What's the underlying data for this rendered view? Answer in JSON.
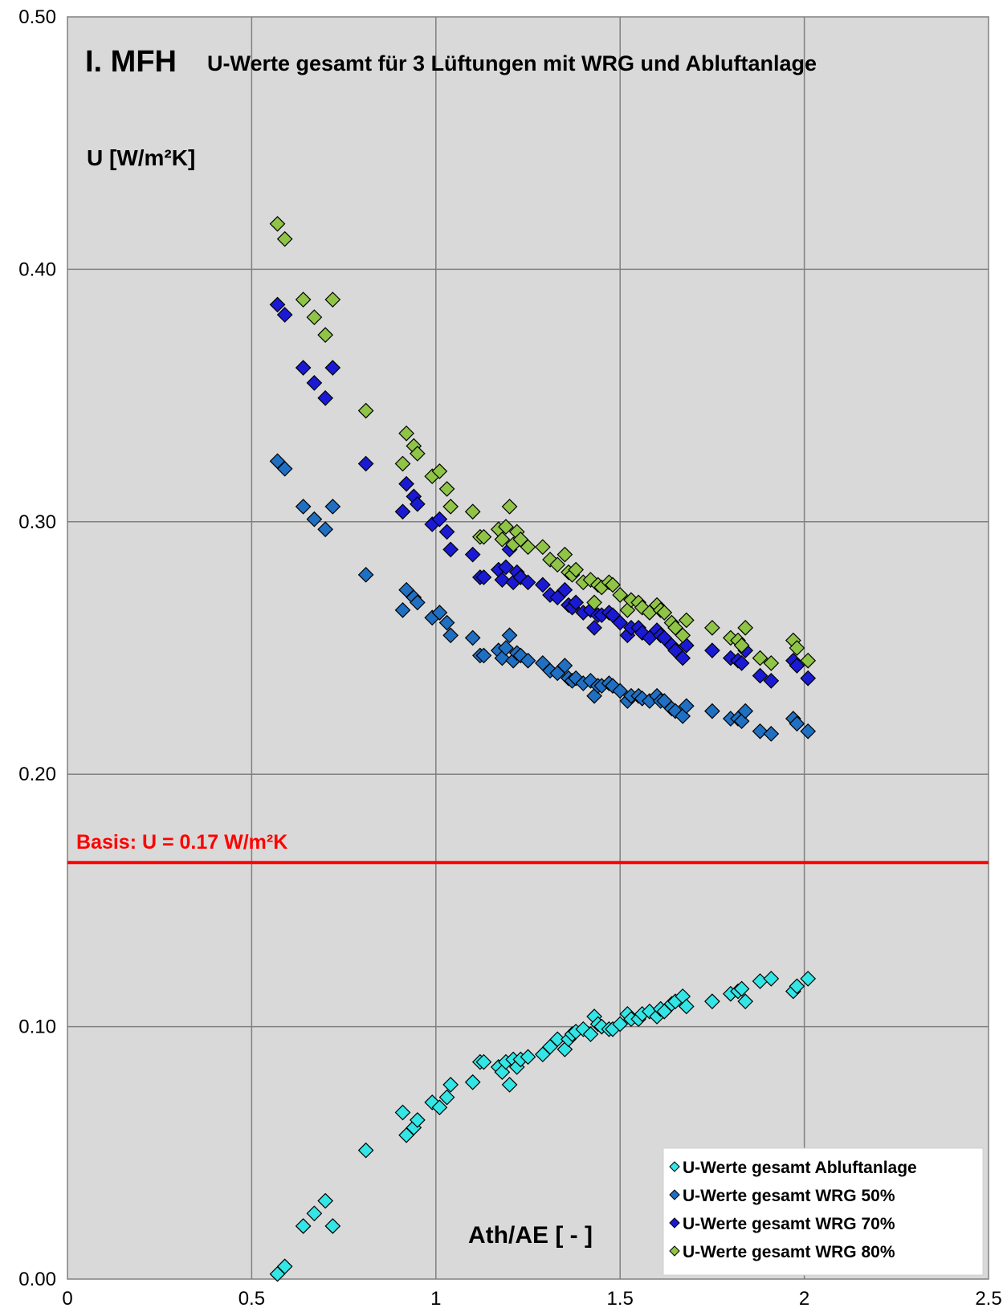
{
  "chart_data": {
    "type": "scatter",
    "title": "I. MFH",
    "subtitle": "U-Werte gesamt für 3 Lüftungen mit WRG und Abluftanlage",
    "ylabel": "U [W/m²K]",
    "xlabel": "Ath/AE [ - ]",
    "xlim": [
      0,
      2.5
    ],
    "ylim": [
      0,
      0.5
    ],
    "xticks": [
      "0",
      "0.5",
      "1",
      "1.5",
      "2",
      "2.5"
    ],
    "yticks": [
      "0.00",
      "0.10",
      "0.20",
      "0.30",
      "0.40",
      "0.50"
    ],
    "grid": true,
    "legend_position": "bottom-right",
    "reference_line": {
      "y": 0.165,
      "label": "Basis: U = 0.17 W/m²K",
      "color": "#ff0000"
    },
    "series": [
      {
        "name": "U-Werte gesamt Abluftanlage",
        "color": "#33e5e5",
        "points": [
          [
            0.57,
            0.002
          ],
          [
            0.59,
            0.005
          ],
          [
            0.64,
            0.021
          ],
          [
            0.67,
            0.026
          ],
          [
            0.7,
            0.031
          ],
          [
            0.72,
            0.021
          ],
          [
            0.81,
            0.051
          ],
          [
            0.91,
            0.066
          ],
          [
            0.92,
            0.057
          ],
          [
            0.94,
            0.06
          ],
          [
            0.95,
            0.063
          ],
          [
            0.99,
            0.07
          ],
          [
            1.01,
            0.068
          ],
          [
            1.03,
            0.072
          ],
          [
            1.04,
            0.077
          ],
          [
            1.1,
            0.078
          ],
          [
            1.12,
            0.086
          ],
          [
            1.13,
            0.086
          ],
          [
            1.17,
            0.084
          ],
          [
            1.18,
            0.082
          ],
          [
            1.19,
            0.086
          ],
          [
            1.2,
            0.077
          ],
          [
            1.21,
            0.087
          ],
          [
            1.22,
            0.084
          ],
          [
            1.23,
            0.087
          ],
          [
            1.25,
            0.088
          ],
          [
            1.29,
            0.089
          ],
          [
            1.31,
            0.092
          ],
          [
            1.33,
            0.095
          ],
          [
            1.35,
            0.091
          ],
          [
            1.36,
            0.095
          ],
          [
            1.37,
            0.097
          ],
          [
            1.38,
            0.098
          ],
          [
            1.4,
            0.099
          ],
          [
            1.42,
            0.097
          ],
          [
            1.43,
            0.104
          ],
          [
            1.44,
            0.101
          ],
          [
            1.45,
            0.1
          ],
          [
            1.47,
            0.099
          ],
          [
            1.48,
            0.099
          ],
          [
            1.5,
            0.101
          ],
          [
            1.52,
            0.105
          ],
          [
            1.53,
            0.103
          ],
          [
            1.55,
            0.103
          ],
          [
            1.56,
            0.105
          ],
          [
            1.58,
            0.106
          ],
          [
            1.6,
            0.104
          ],
          [
            1.61,
            0.107
          ],
          [
            1.62,
            0.106
          ],
          [
            1.64,
            0.109
          ],
          [
            1.65,
            0.11
          ],
          [
            1.67,
            0.112
          ],
          [
            1.68,
            0.108
          ],
          [
            1.75,
            0.11
          ],
          [
            1.8,
            0.113
          ],
          [
            1.82,
            0.114
          ],
          [
            1.83,
            0.115
          ],
          [
            1.84,
            0.11
          ],
          [
            1.88,
            0.118
          ],
          [
            1.91,
            0.119
          ],
          [
            1.97,
            0.114
          ],
          [
            1.98,
            0.116
          ],
          [
            2.01,
            0.119
          ]
        ]
      },
      {
        "name": "U-Werte gesamt WRG 50%",
        "color": "#1f6fc2",
        "points": [
          [
            0.57,
            0.324
          ],
          [
            0.59,
            0.321
          ],
          [
            0.64,
            0.306
          ],
          [
            0.67,
            0.301
          ],
          [
            0.7,
            0.297
          ],
          [
            0.72,
            0.306
          ],
          [
            0.81,
            0.279
          ],
          [
            0.91,
            0.265
          ],
          [
            0.92,
            0.273
          ],
          [
            0.94,
            0.27
          ],
          [
            0.95,
            0.268
          ],
          [
            0.99,
            0.262
          ],
          [
            1.01,
            0.264
          ],
          [
            1.03,
            0.26
          ],
          [
            1.04,
            0.255
          ],
          [
            1.1,
            0.254
          ],
          [
            1.12,
            0.247
          ],
          [
            1.13,
            0.247
          ],
          [
            1.17,
            0.249
          ],
          [
            1.18,
            0.246
          ],
          [
            1.19,
            0.25
          ],
          [
            1.2,
            0.255
          ],
          [
            1.21,
            0.245
          ],
          [
            1.22,
            0.248
          ],
          [
            1.23,
            0.247
          ],
          [
            1.25,
            0.245
          ],
          [
            1.29,
            0.244
          ],
          [
            1.31,
            0.241
          ],
          [
            1.33,
            0.24
          ],
          [
            1.35,
            0.243
          ],
          [
            1.36,
            0.238
          ],
          [
            1.37,
            0.237
          ],
          [
            1.38,
            0.238
          ],
          [
            1.4,
            0.236
          ],
          [
            1.42,
            0.237
          ],
          [
            1.43,
            0.231
          ],
          [
            1.44,
            0.235
          ],
          [
            1.45,
            0.235
          ],
          [
            1.47,
            0.236
          ],
          [
            1.48,
            0.235
          ],
          [
            1.5,
            0.233
          ],
          [
            1.52,
            0.229
          ],
          [
            1.53,
            0.231
          ],
          [
            1.55,
            0.231
          ],
          [
            1.56,
            0.23
          ],
          [
            1.58,
            0.229
          ],
          [
            1.6,
            0.231
          ],
          [
            1.61,
            0.229
          ],
          [
            1.62,
            0.229
          ],
          [
            1.64,
            0.226
          ],
          [
            1.65,
            0.225
          ],
          [
            1.67,
            0.223
          ],
          [
            1.68,
            0.227
          ],
          [
            1.75,
            0.225
          ],
          [
            1.8,
            0.222
          ],
          [
            1.82,
            0.222
          ],
          [
            1.83,
            0.221
          ],
          [
            1.84,
            0.225
          ],
          [
            1.88,
            0.217
          ],
          [
            1.91,
            0.216
          ],
          [
            1.97,
            0.222
          ],
          [
            1.98,
            0.22
          ],
          [
            2.01,
            0.217
          ]
        ]
      },
      {
        "name": "U-Werte gesamt WRG 70%",
        "color": "#1a1ad4",
        "points": [
          [
            0.57,
            0.386
          ],
          [
            0.59,
            0.382
          ],
          [
            0.64,
            0.361
          ],
          [
            0.67,
            0.355
          ],
          [
            0.7,
            0.349
          ],
          [
            0.72,
            0.361
          ],
          [
            0.81,
            0.323
          ],
          [
            0.91,
            0.304
          ],
          [
            0.92,
            0.315
          ],
          [
            0.94,
            0.31
          ],
          [
            0.95,
            0.307
          ],
          [
            0.99,
            0.299
          ],
          [
            1.01,
            0.301
          ],
          [
            1.03,
            0.296
          ],
          [
            1.04,
            0.289
          ],
          [
            1.1,
            0.287
          ],
          [
            1.12,
            0.278
          ],
          [
            1.13,
            0.278
          ],
          [
            1.17,
            0.281
          ],
          [
            1.18,
            0.277
          ],
          [
            1.19,
            0.282
          ],
          [
            1.2,
            0.289
          ],
          [
            1.21,
            0.276
          ],
          [
            1.22,
            0.28
          ],
          [
            1.23,
            0.278
          ],
          [
            1.25,
            0.276
          ],
          [
            1.29,
            0.275
          ],
          [
            1.31,
            0.271
          ],
          [
            1.33,
            0.27
          ],
          [
            1.35,
            0.273
          ],
          [
            1.36,
            0.267
          ],
          [
            1.37,
            0.266
          ],
          [
            1.38,
            0.268
          ],
          [
            1.4,
            0.264
          ],
          [
            1.42,
            0.265
          ],
          [
            1.43,
            0.258
          ],
          [
            1.44,
            0.263
          ],
          [
            1.45,
            0.263
          ],
          [
            1.47,
            0.264
          ],
          [
            1.48,
            0.263
          ],
          [
            1.5,
            0.26
          ],
          [
            1.52,
            0.255
          ],
          [
            1.53,
            0.258
          ],
          [
            1.55,
            0.258
          ],
          [
            1.56,
            0.256
          ],
          [
            1.58,
            0.254
          ],
          [
            1.6,
            0.257
          ],
          [
            1.61,
            0.255
          ],
          [
            1.62,
            0.254
          ],
          [
            1.64,
            0.251
          ],
          [
            1.65,
            0.249
          ],
          [
            1.67,
            0.246
          ],
          [
            1.68,
            0.251
          ],
          [
            1.75,
            0.249
          ],
          [
            1.8,
            0.246
          ],
          [
            1.82,
            0.245
          ],
          [
            1.83,
            0.244
          ],
          [
            1.84,
            0.249
          ],
          [
            1.88,
            0.239
          ],
          [
            1.91,
            0.237
          ],
          [
            1.97,
            0.245
          ],
          [
            1.98,
            0.243
          ],
          [
            2.01,
            0.238
          ]
        ]
      },
      {
        "name": "U-Werte gesamt WRG 80%",
        "color": "#8fc446",
        "points": [
          [
            0.57,
            0.418
          ],
          [
            0.59,
            0.412
          ],
          [
            0.64,
            0.388
          ],
          [
            0.67,
            0.381
          ],
          [
            0.7,
            0.374
          ],
          [
            0.72,
            0.388
          ],
          [
            0.81,
            0.344
          ],
          [
            0.91,
            0.323
          ],
          [
            0.92,
            0.335
          ],
          [
            0.94,
            0.33
          ],
          [
            0.95,
            0.327
          ],
          [
            0.99,
            0.318
          ],
          [
            1.01,
            0.32
          ],
          [
            1.03,
            0.313
          ],
          [
            1.04,
            0.306
          ],
          [
            1.1,
            0.304
          ],
          [
            1.12,
            0.294
          ],
          [
            1.13,
            0.294
          ],
          [
            1.17,
            0.297
          ],
          [
            1.18,
            0.293
          ],
          [
            1.19,
            0.298
          ],
          [
            1.2,
            0.306
          ],
          [
            1.21,
            0.291
          ],
          [
            1.22,
            0.296
          ],
          [
            1.23,
            0.293
          ],
          [
            1.25,
            0.29
          ],
          [
            1.29,
            0.29
          ],
          [
            1.31,
            0.285
          ],
          [
            1.33,
            0.283
          ],
          [
            1.35,
            0.287
          ],
          [
            1.36,
            0.28
          ],
          [
            1.37,
            0.279
          ],
          [
            1.38,
            0.281
          ],
          [
            1.4,
            0.276
          ],
          [
            1.42,
            0.277
          ],
          [
            1.43,
            0.268
          ],
          [
            1.44,
            0.275
          ],
          [
            1.45,
            0.274
          ],
          [
            1.47,
            0.276
          ],
          [
            1.48,
            0.275
          ],
          [
            1.5,
            0.271
          ],
          [
            1.52,
            0.265
          ],
          [
            1.53,
            0.269
          ],
          [
            1.55,
            0.268
          ],
          [
            1.56,
            0.266
          ],
          [
            1.58,
            0.264
          ],
          [
            1.6,
            0.267
          ],
          [
            1.61,
            0.265
          ],
          [
            1.62,
            0.264
          ],
          [
            1.64,
            0.26
          ],
          [
            1.65,
            0.258
          ],
          [
            1.67,
            0.255
          ],
          [
            1.68,
            0.261
          ],
          [
            1.75,
            0.258
          ],
          [
            1.8,
            0.254
          ],
          [
            1.82,
            0.253
          ],
          [
            1.83,
            0.251
          ],
          [
            1.84,
            0.258
          ],
          [
            1.88,
            0.246
          ],
          [
            1.91,
            0.244
          ],
          [
            1.97,
            0.253
          ],
          [
            1.98,
            0.25
          ],
          [
            2.01,
            0.245
          ]
        ]
      }
    ]
  }
}
